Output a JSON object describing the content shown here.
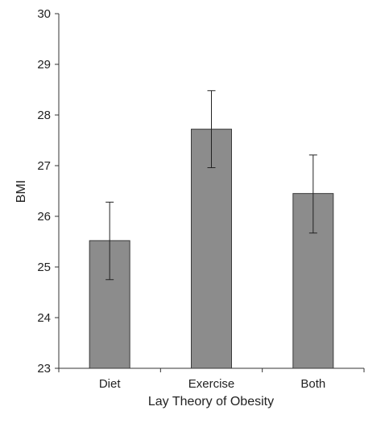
{
  "chart_data": {
    "type": "bar",
    "title": "",
    "xlabel": "Lay Theory of Obesity",
    "ylabel": "BMI",
    "categories": [
      "Diet",
      "Exercise",
      "Both"
    ],
    "values": [
      25.52,
      27.72,
      26.45
    ],
    "error_bars": {
      "upper": [
        26.28,
        28.48,
        27.21
      ],
      "lower": [
        24.75,
        26.96,
        25.67
      ]
    },
    "ylim": [
      23,
      30
    ],
    "yticks": [
      "23",
      "24",
      "25",
      "26",
      "27",
      "28",
      "29",
      "30"
    ],
    "grid": false,
    "legend": "none",
    "colors": {
      "bar_fill": "#8c8c8c",
      "bar_stroke": "#3a3a3a",
      "axis": "#333333",
      "error_bar": "#222222"
    }
  }
}
